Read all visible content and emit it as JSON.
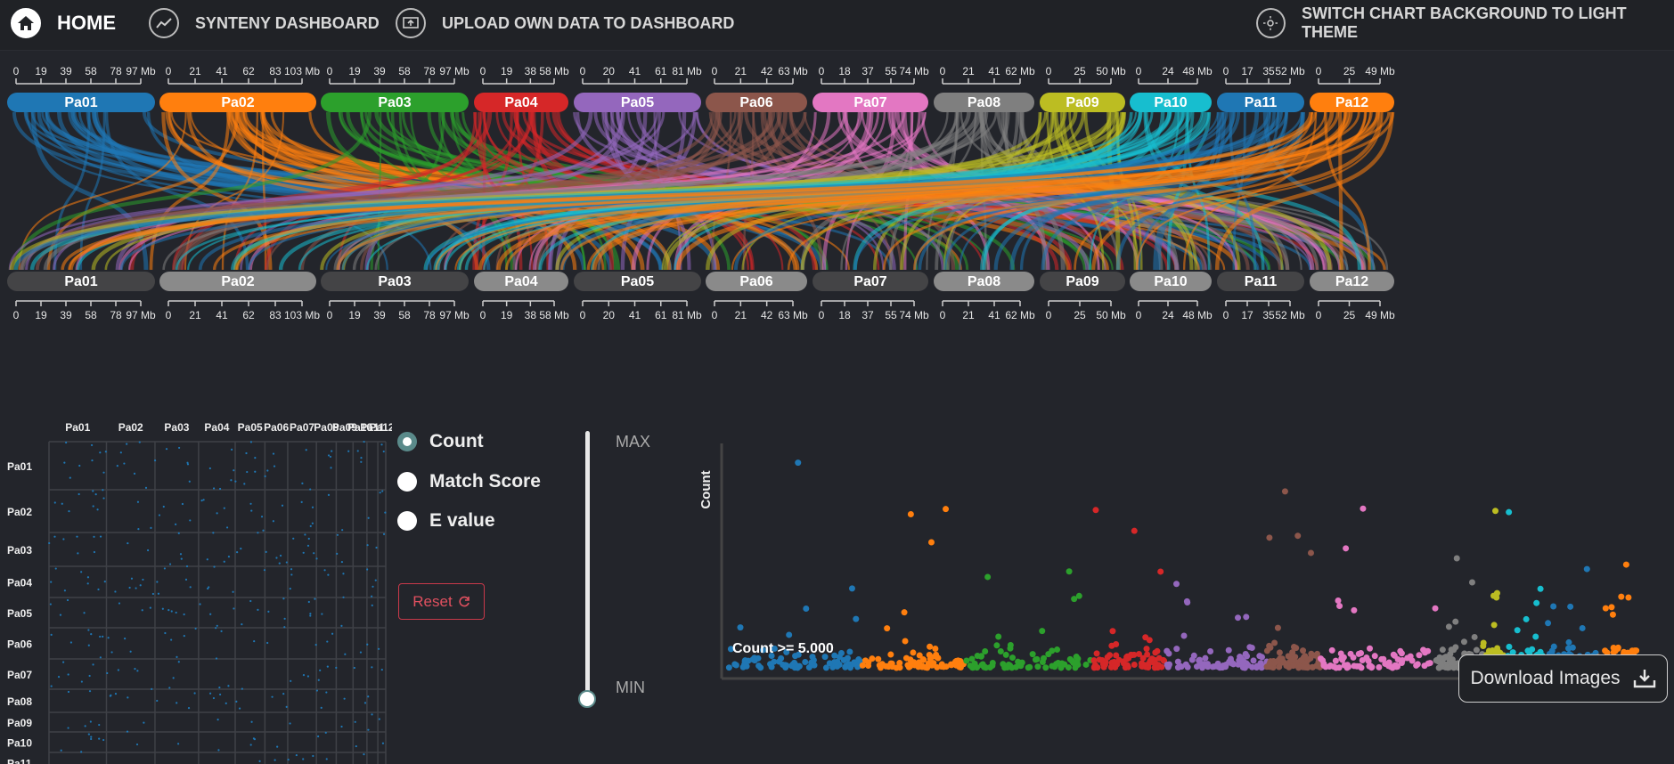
{
  "nav": {
    "home_label": "HOME",
    "synteny_label": "SYNTENY DASHBOARD",
    "upload_label": "UPLOAD OWN DATA TO DASHBOARD",
    "theme_label": "SWITCH CHART BACKGROUND TO LIGHT THEME"
  },
  "colors": {
    "background": "#23252b",
    "accent": "#5a8a8a",
    "reset_red": "#c9394a"
  },
  "chromosomes": [
    {
      "name": "Pa01",
      "color": "#1f77b4",
      "ticks": [
        "0",
        "19",
        "39",
        "58",
        "78",
        "97 Mb"
      ]
    },
    {
      "name": "Pa02",
      "color": "#ff7f0e",
      "ticks": [
        "0",
        "21",
        "41",
        "62",
        "83",
        "103 Mb"
      ]
    },
    {
      "name": "Pa03",
      "color": "#2ca02c",
      "ticks": [
        "0",
        "19",
        "39",
        "58",
        "78",
        "97 Mb"
      ]
    },
    {
      "name": "Pa04",
      "color": "#d62728",
      "ticks": [
        "0",
        "19",
        "38",
        "58 Mb"
      ]
    },
    {
      "name": "Pa05",
      "color": "#9467bd",
      "ticks": [
        "0",
        "20",
        "41",
        "61",
        "81 Mb"
      ]
    },
    {
      "name": "Pa06",
      "color": "#8c564b",
      "ticks": [
        "0",
        "21",
        "42",
        "63 Mb"
      ]
    },
    {
      "name": "Pa07",
      "color": "#e377c2",
      "ticks": [
        "0",
        "18",
        "37",
        "55",
        "74 Mb"
      ]
    },
    {
      "name": "Pa08",
      "color": "#7f7f7f",
      "ticks": [
        "0",
        "21",
        "41",
        "62 Mb"
      ]
    },
    {
      "name": "Pa09",
      "color": "#bcbd22",
      "ticks": [
        "0",
        "25",
        "50 Mb"
      ]
    },
    {
      "name": "Pa10",
      "color": "#17becf",
      "ticks": [
        "0",
        "24",
        "48 Mb"
      ]
    },
    {
      "name": "Pa11",
      "color": "#1f77b4",
      "ticks": [
        "0",
        "17",
        "35",
        "52 Mb"
      ]
    },
    {
      "name": "Pa12",
      "color": "#ff7f0e",
      "ticks": [
        "0",
        "25",
        "49 Mb"
      ]
    }
  ],
  "bottom_chromosome_color": "#444446",
  "bottom_chromosome_highlight": "#8a8a8a",
  "dotplot": {
    "labels": [
      "Pa01",
      "Pa02",
      "Pa03",
      "Pa04",
      "Pa05",
      "Pa06",
      "Pa07",
      "Pa08",
      "Pa09",
      "Pa10",
      "Pa11",
      "Pa12"
    ],
    "dot_color": "#1f77b4"
  },
  "controls": {
    "options": [
      "Count",
      "Match Score",
      "E value"
    ],
    "selected": "Count",
    "reset_label": "Reset",
    "slider_max": "MAX",
    "slider_min": "MIN"
  },
  "chart_data": {
    "type": "scatter",
    "ylabel": "Count",
    "annotation": "Count >= 5.000",
    "series": [
      {
        "chromosome": "Pa01",
        "color": "#1f77b4"
      },
      {
        "chromosome": "Pa02",
        "color": "#ff7f0e"
      },
      {
        "chromosome": "Pa03",
        "color": "#2ca02c"
      },
      {
        "chromosome": "Pa04",
        "color": "#d62728"
      },
      {
        "chromosome": "Pa05",
        "color": "#9467bd"
      },
      {
        "chromosome": "Pa06",
        "color": "#8c564b"
      },
      {
        "chromosome": "Pa07",
        "color": "#e377c2"
      },
      {
        "chromosome": "Pa08",
        "color": "#7f7f7f"
      },
      {
        "chromosome": "Pa09",
        "color": "#bcbd22"
      },
      {
        "chromosome": "Pa10",
        "color": "#17becf"
      },
      {
        "chromosome": "Pa11",
        "color": "#1f77b4"
      },
      {
        "chromosome": "Pa12",
        "color": "#ff7f0e"
      }
    ]
  },
  "download_label": "Download Images"
}
